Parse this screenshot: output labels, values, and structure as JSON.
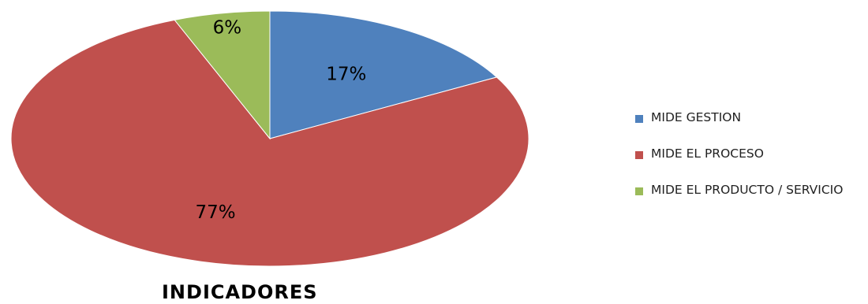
{
  "chart_data": {
    "type": "pie",
    "title": "INDICADORES",
    "slices": [
      {
        "label": "MIDE GESTION",
        "value": 17,
        "display": "17%",
        "color": "#4F81BD"
      },
      {
        "label": "MIDE EL PROCESO",
        "value": 77,
        "display": "77%",
        "color": "#C0504D"
      },
      {
        "label": "MIDE EL PRODUCTO / SERVICIO",
        "value": 6,
        "display": "6%",
        "color": "#9BBB59"
      }
    ],
    "start": "top",
    "direction": "clockwise",
    "legend_position": "right"
  }
}
